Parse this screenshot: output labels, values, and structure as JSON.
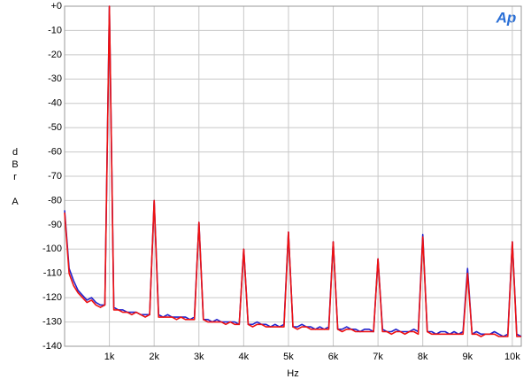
{
  "chart_data": {
    "type": "line",
    "logo": "Ap",
    "ylabel": [
      "d",
      "B",
      "r",
      "A"
    ],
    "xlabel": "Hz",
    "xlim": [
      0,
      10200
    ],
    "ylim": [
      -140,
      0
    ],
    "xticks": [
      {
        "value": 1000,
        "label": "1k"
      },
      {
        "value": 2000,
        "label": "2k"
      },
      {
        "value": 3000,
        "label": "3k"
      },
      {
        "value": 4000,
        "label": "4k"
      },
      {
        "value": 5000,
        "label": "5k"
      },
      {
        "value": 6000,
        "label": "6k"
      },
      {
        "value": 7000,
        "label": "7k"
      },
      {
        "value": 8000,
        "label": "8k"
      },
      {
        "value": 9000,
        "label": "9k"
      },
      {
        "value": 10000,
        "label": "10k"
      }
    ],
    "yticks": [
      {
        "value": 0,
        "label": "+0"
      },
      -10,
      -20,
      -30,
      -40,
      -50,
      -60,
      -70,
      -80,
      -90,
      -100,
      -110,
      -120,
      -130,
      -140
    ],
    "grid": true,
    "x": [
      0,
      100,
      200,
      300,
      400,
      500,
      600,
      700,
      800,
      900,
      1000,
      1100,
      1200,
      1300,
      1400,
      1500,
      1600,
      1700,
      1800,
      1900,
      2000,
      2100,
      2200,
      2300,
      2400,
      2500,
      2600,
      2700,
      2800,
      2900,
      3000,
      3100,
      3200,
      3300,
      3400,
      3500,
      3600,
      3700,
      3800,
      3900,
      4000,
      4100,
      4200,
      4300,
      4400,
      4500,
      4600,
      4700,
      4800,
      4900,
      5000,
      5100,
      5200,
      5300,
      5400,
      5500,
      5600,
      5700,
      5800,
      5900,
      6000,
      6100,
      6200,
      6300,
      6400,
      6500,
      6600,
      6700,
      6800,
      6900,
      7000,
      7100,
      7200,
      7300,
      7400,
      7500,
      7600,
      7700,
      7800,
      7900,
      8000,
      8100,
      8200,
      8300,
      8400,
      8500,
      8600,
      8700,
      8800,
      8900,
      9000,
      9100,
      9200,
      9300,
      9400,
      9500,
      9600,
      9700,
      9800,
      9900,
      10000,
      10100,
      10200
    ],
    "series": [
      {
        "color": "#2222cc",
        "values": [
          -84,
          -108,
          -113,
          -117,
          -119,
          -121,
          -120,
          -122,
          -123,
          -123,
          0,
          -124,
          -125,
          -125,
          -126,
          -126,
          -126,
          -127,
          -127,
          -127,
          -80,
          -127,
          -128,
          -127,
          -128,
          -128,
          -128,
          -128,
          -129,
          -128,
          -89,
          -129,
          -129,
          -130,
          -129,
          -130,
          -130,
          -130,
          -130,
          -131,
          -100,
          -131,
          -131,
          -130,
          -131,
          -131,
          -132,
          -131,
          -132,
          -131,
          -93,
          -132,
          -132,
          -131,
          -132,
          -132,
          -133,
          -132,
          -133,
          -132,
          -97,
          -133,
          -133,
          -132,
          -133,
          -133,
          -134,
          -133,
          -133,
          -134,
          -104,
          -133,
          -134,
          -134,
          -133,
          -134,
          -134,
          -134,
          -133,
          -134,
          -94,
          -134,
          -134,
          -135,
          -134,
          -134,
          -135,
          -134,
          -135,
          -134,
          -108,
          -135,
          -134,
          -135,
          -135,
          -135,
          -134,
          -135,
          -136,
          -135,
          -97,
          -135,
          -136
        ]
      },
      {
        "color": "#ee1111",
        "values": [
          -85,
          -110,
          -115,
          -118,
          -120,
          -122,
          -121,
          -123,
          -124,
          -123,
          0,
          -125,
          -125,
          -126,
          -126,
          -127,
          -126,
          -127,
          -128,
          -127,
          -80,
          -128,
          -128,
          -128,
          -128,
          -129,
          -128,
          -129,
          -129,
          -129,
          -89,
          -129,
          -130,
          -130,
          -130,
          -130,
          -131,
          -130,
          -131,
          -131,
          -100,
          -131,
          -132,
          -131,
          -131,
          -132,
          -132,
          -132,
          -132,
          -132,
          -93,
          -132,
          -133,
          -132,
          -132,
          -133,
          -133,
          -133,
          -133,
          -133,
          -97,
          -133,
          -134,
          -133,
          -133,
          -134,
          -134,
          -134,
          -134,
          -134,
          -104,
          -134,
          -134,
          -135,
          -134,
          -134,
          -135,
          -134,
          -134,
          -135,
          -95,
          -134,
          -135,
          -135,
          -135,
          -135,
          -135,
          -135,
          -135,
          -135,
          -110,
          -135,
          -135,
          -136,
          -135,
          -135,
          -135,
          -136,
          -136,
          -136,
          -97,
          -136,
          -136
        ]
      }
    ]
  }
}
